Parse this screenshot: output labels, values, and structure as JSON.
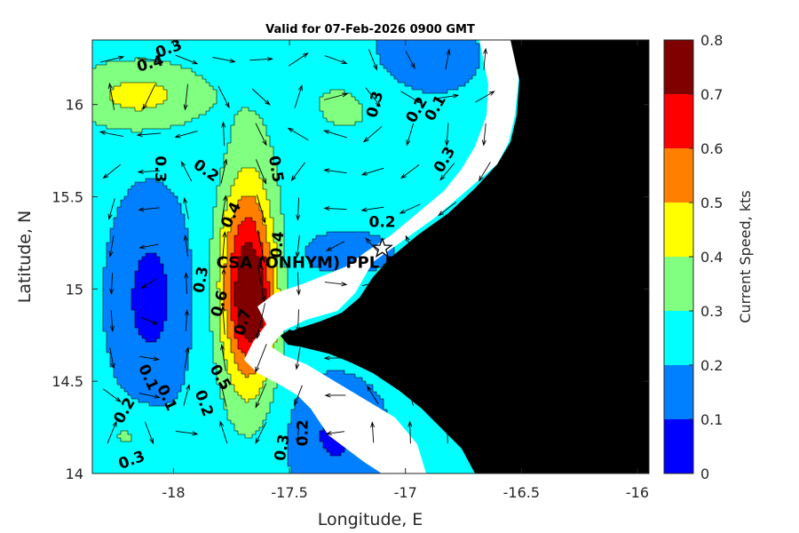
{
  "chart_data": {
    "type": "heatmap",
    "title": "Valid for 07-Feb-2026 0900 GMT",
    "xlabel": "Longitude, E",
    "ylabel": "Latitude, N",
    "xlim": [
      -18.35,
      -15.95
    ],
    "ylim": [
      14.0,
      16.35
    ],
    "x_ticks": [
      {
        "value": -18,
        "label": "-18"
      },
      {
        "value": -17.5,
        "label": "-17.5"
      },
      {
        "value": -17,
        "label": "-17"
      },
      {
        "value": -16.5,
        "label": "-16.5"
      },
      {
        "value": -16,
        "label": "-16"
      }
    ],
    "y_ticks": [
      {
        "value": 14,
        "label": "14"
      },
      {
        "value": 14.5,
        "label": "14.5"
      },
      {
        "value": 15,
        "label": "15"
      },
      {
        "value": 15.5,
        "label": "15.5"
      },
      {
        "value": 16,
        "label": "16"
      }
    ],
    "colorbar": {
      "label": "Current Speed, kts",
      "range": [
        0,
        0.8
      ],
      "levels": [
        0,
        0.1,
        0.2,
        0.3,
        0.4,
        0.5,
        0.6,
        0.7,
        0.8
      ],
      "tick_labels": [
        "0",
        "0.1",
        "0.2",
        "0.3",
        "0.4",
        "0.5",
        "0.6",
        "0.7",
        "0.8"
      ],
      "colors": [
        "#0000ff",
        "#0080ff",
        "#00ffff",
        "#80ff80",
        "#ffff00",
        "#ff8000",
        "#ff0000",
        "#800000"
      ]
    },
    "land_color": "#000000",
    "nodata_color": "#ffffff",
    "speed_field": {
      "background": 0.22,
      "features": [
        {
          "lon": -17.68,
          "lat": 15.02,
          "sx": 0.085,
          "sy": 0.42,
          "amp": 0.55,
          "name": "jet core"
        },
        {
          "lon": -17.64,
          "lat": 14.9,
          "sx": 0.05,
          "sy": 0.14,
          "amp": 0.16,
          "name": "jet max"
        },
        {
          "lon": -18.1,
          "lat": 14.95,
          "sx": 0.1,
          "sy": 0.32,
          "amp": -0.16,
          "name": "west minimum"
        },
        {
          "lon": -17.3,
          "lat": 14.2,
          "sx": 0.12,
          "sy": 0.18,
          "amp": -0.14,
          "name": "south minimum"
        },
        {
          "lon": -18.15,
          "lat": 16.05,
          "sx": 0.22,
          "sy": 0.14,
          "amp": 0.21,
          "name": "northwest high"
        },
        {
          "lon": -17.25,
          "lat": 16.0,
          "sx": 0.25,
          "sy": 0.25,
          "amp": 0.09,
          "name": "north ridge"
        },
        {
          "lon": -16.95,
          "lat": 16.25,
          "sx": 0.15,
          "sy": 0.15,
          "amp": -0.12,
          "name": "northeast minimum"
        },
        {
          "lon": -17.25,
          "lat": 15.2,
          "sx": 0.12,
          "sy": 0.07,
          "amp": -0.08,
          "name": "nearshore minimum"
        },
        {
          "lon": -18.2,
          "lat": 14.2,
          "sx": 0.1,
          "sy": 0.1,
          "amp": 0.09,
          "name": "southwest high"
        }
      ]
    },
    "contour_labels": [
      {
        "text": "0.3",
        "lon": -18.02,
        "lat": 16.3,
        "angle": -20
      },
      {
        "text": "0.4",
        "lon": -18.1,
        "lat": 16.22,
        "angle": -15
      },
      {
        "text": "0.3",
        "lon": -17.13,
        "lat": 16.0,
        "angle": -75
      },
      {
        "text": "0.2",
        "lon": -16.95,
        "lat": 15.97,
        "angle": -60
      },
      {
        "text": "0.1",
        "lon": -16.87,
        "lat": 15.98,
        "angle": -60
      },
      {
        "text": "0.3",
        "lon": -16.83,
        "lat": 15.7,
        "angle": -60
      },
      {
        "text": "0.3",
        "lon": -18.06,
        "lat": 15.65,
        "angle": 90
      },
      {
        "text": "0.2",
        "lon": -17.86,
        "lat": 15.64,
        "angle": 35
      },
      {
        "text": "0.5",
        "lon": -17.56,
        "lat": 15.65,
        "angle": 80
      },
      {
        "text": "0.4",
        "lon": -17.75,
        "lat": 15.4,
        "angle": -65
      },
      {
        "text": "0.2",
        "lon": -17.1,
        "lat": 15.36,
        "angle": 0
      },
      {
        "text": "0.4",
        "lon": -17.55,
        "lat": 15.24,
        "angle": -85
      },
      {
        "text": "0.3",
        "lon": -17.88,
        "lat": 15.05,
        "angle": -80
      },
      {
        "text": "0.6",
        "lon": -17.8,
        "lat": 14.92,
        "angle": -75
      },
      {
        "text": "0.7",
        "lon": -17.7,
        "lat": 14.82,
        "angle": -75
      },
      {
        "text": "0.5",
        "lon": -17.8,
        "lat": 14.52,
        "angle": 60
      },
      {
        "text": "0.1",
        "lon": -18.11,
        "lat": 14.52,
        "angle": 65
      },
      {
        "text": "0.1",
        "lon": -18.03,
        "lat": 14.41,
        "angle": 65
      },
      {
        "text": "0.2",
        "lon": -18.21,
        "lat": 14.34,
        "angle": -60
      },
      {
        "text": "0.2",
        "lon": -17.87,
        "lat": 14.38,
        "angle": 70
      },
      {
        "text": "0.3",
        "lon": -18.18,
        "lat": 14.07,
        "angle": -20
      },
      {
        "text": "0.3",
        "lon": -17.53,
        "lat": 14.14,
        "angle": -80
      },
      {
        "text": "0.2",
        "lon": -17.44,
        "lat": 14.22,
        "angle": -90
      }
    ],
    "markers": [
      {
        "label": "CSA (ONHYM) PPL EP",
        "lon": -17.1,
        "lat": 15.22,
        "symbol": "star"
      }
    ]
  }
}
